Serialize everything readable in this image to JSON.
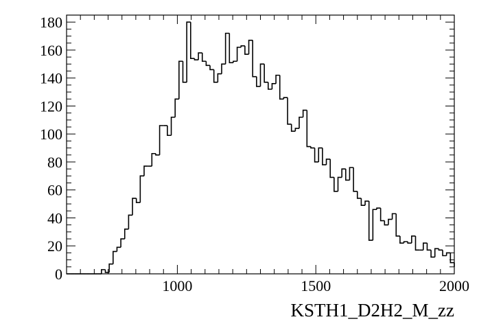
{
  "chart_data": {
    "type": "histogram",
    "title": "",
    "xlabel": "KSTH1_D2H2_M_zz",
    "ylabel": "",
    "xlim": [
      600,
      2000
    ],
    "ylim": [
      0,
      185
    ],
    "bin_width": 14,
    "x_ticks": [
      1000,
      1500,
      2000
    ],
    "y_ticks": [
      0,
      20,
      40,
      60,
      80,
      100,
      120,
      140,
      160,
      180
    ],
    "x_tick_labels": [
      "1000",
      "1500",
      "2000"
    ],
    "y_tick_labels": [
      "0",
      "20",
      "40",
      "60",
      "80",
      "100",
      "120",
      "140",
      "160",
      "180"
    ],
    "grid": false,
    "legend": "none",
    "series": [
      {
        "line_color": "#000000",
        "bin_edges_start": 600,
        "values": [
          0,
          0,
          0,
          0,
          0,
          0,
          0,
          0,
          0,
          3,
          1,
          7,
          16,
          19,
          25,
          32,
          42,
          54,
          51,
          70,
          77,
          77,
          86,
          85,
          106,
          106,
          99,
          112,
          125,
          152,
          137,
          180,
          154,
          153,
          158,
          152,
          149,
          146,
          137,
          143,
          150,
          172,
          151,
          152,
          162,
          163,
          157,
          167,
          141,
          134,
          150,
          137,
          132,
          136,
          142,
          125,
          126,
          107,
          102,
          104,
          112,
          117,
          91,
          90,
          80,
          90,
          78,
          82,
          69,
          59,
          69,
          75,
          67,
          76,
          59,
          54,
          49,
          52,
          24,
          46,
          47,
          38,
          35,
          39,
          43,
          27,
          22,
          23,
          22,
          27,
          17,
          17,
          22,
          17,
          12,
          18,
          17,
          13,
          15,
          8,
          5
        ]
      }
    ]
  }
}
